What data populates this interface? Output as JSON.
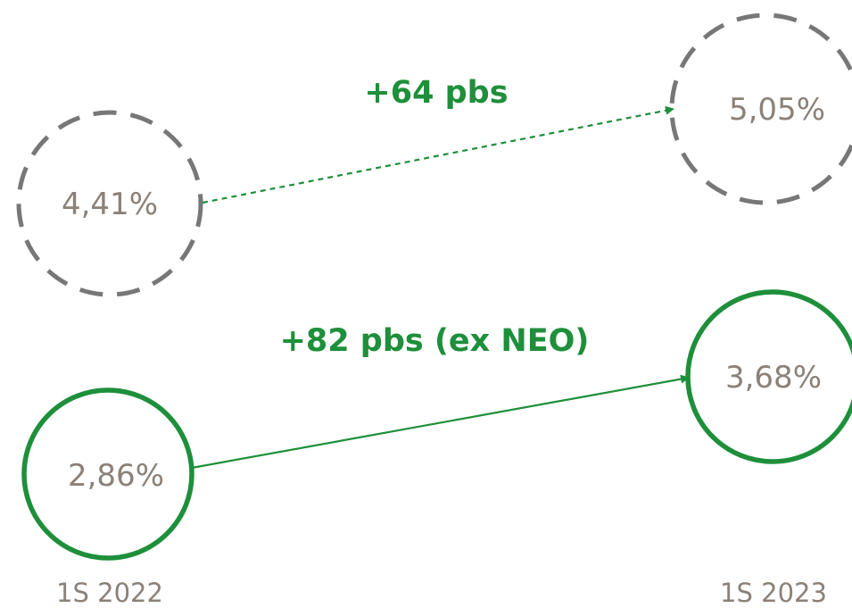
{
  "colors": {
    "green": "#1e8f3a",
    "gray_circle": "#777777",
    "value_text": "#8a8178",
    "period_text": "#8a8178"
  },
  "top_row": {
    "start_value": "4,41%",
    "end_value": "5,05%",
    "change_label": "+64 pbs"
  },
  "bottom_row": {
    "start_value": "2,86%",
    "end_value": "3,68%",
    "change_label": "+82 pbs (ex NEO)"
  },
  "periods": {
    "start": "1S 2022",
    "end": "1S 2023"
  }
}
